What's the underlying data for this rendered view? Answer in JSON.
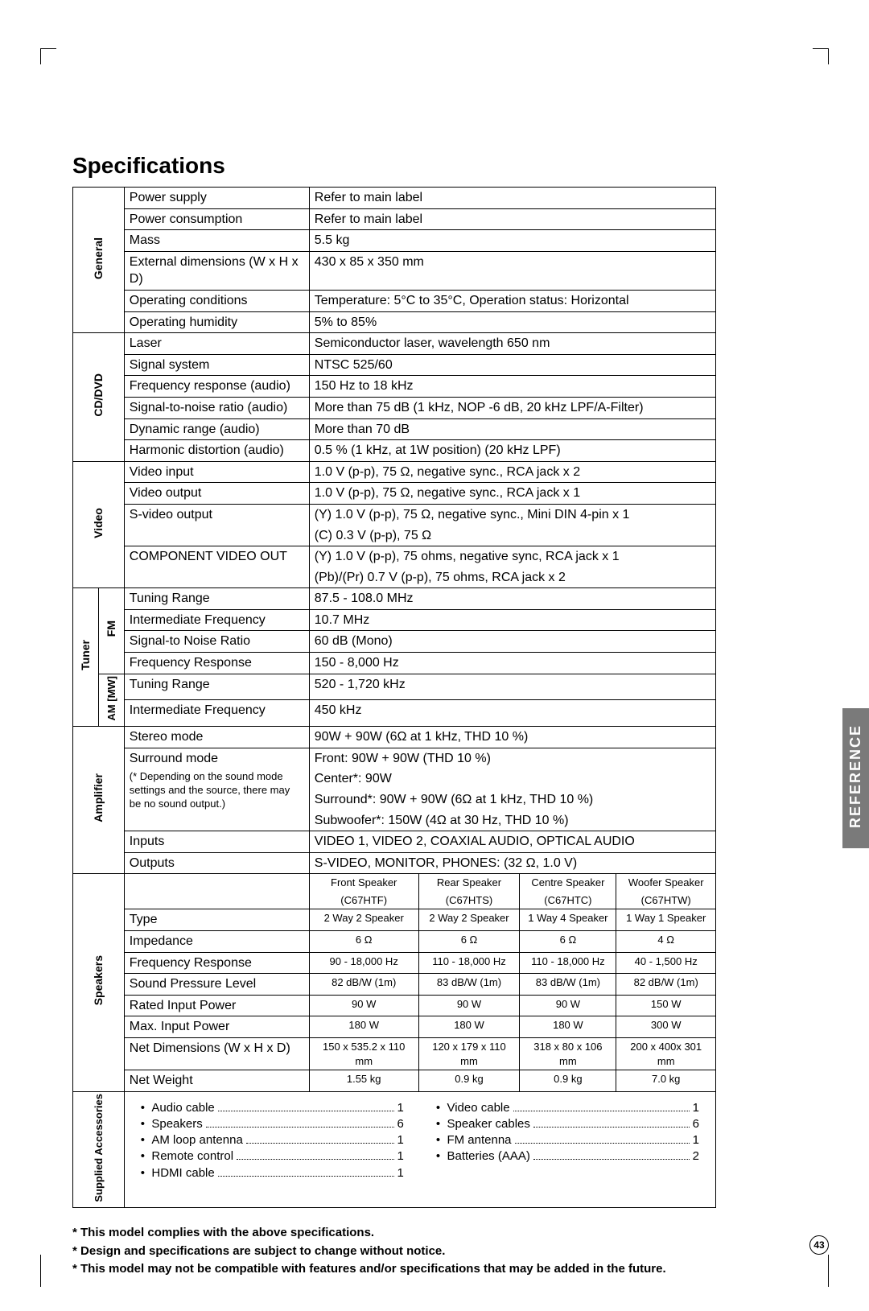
{
  "title": "Specifications",
  "side_tab": "REFERENCE",
  "page_number": "43",
  "sections": {
    "general": {
      "label": "General",
      "rows": [
        {
          "k": "Power supply",
          "v": "Refer to main label"
        },
        {
          "k": "Power consumption",
          "v": "Refer to main label"
        },
        {
          "k": "Mass",
          "v": "5.5 kg"
        },
        {
          "k": "External dimensions (W x H x D)",
          "v": "430 x 85 x 350 mm"
        },
        {
          "k": "Operating conditions",
          "v": "Temperature: 5°C to 35°C, Operation status: Horizontal"
        },
        {
          "k": "Operating humidity",
          "v": "5% to 85%"
        }
      ]
    },
    "cddvd": {
      "label": "CD/DVD",
      "rows": [
        {
          "k": "Laser",
          "v": "Semiconductor laser, wavelength 650 nm"
        },
        {
          "k": "Signal system",
          "v": "NTSC 525/60"
        },
        {
          "k": "Frequency response (audio)",
          "v": "150 Hz to 18 kHz"
        },
        {
          "k": "Signal-to-noise ratio (audio)",
          "v": "More than 75 dB (1 kHz, NOP -6 dB, 20 kHz LPF/A-Filter)"
        },
        {
          "k": "Dynamic range (audio)",
          "v": "More than 70 dB"
        },
        {
          "k": "Harmonic distortion (audio)",
          "v": "0.5 % (1 kHz, at 1W position) (20 kHz LPF)"
        }
      ]
    },
    "video": {
      "label": "Video",
      "rows": [
        {
          "k": "Video input",
          "v": "1.0 V (p-p), 75 Ω, negative sync., RCA jack x 2"
        },
        {
          "k": "Video output",
          "v": "1.0 V (p-p), 75 Ω, negative sync., RCA jack x 1"
        },
        {
          "k": "S-video output",
          "v": "(Y) 1.0 V (p-p), 75 Ω, negative sync., Mini DIN 4-pin x 1"
        },
        {
          "k": "",
          "v": "(C) 0.3 V (p-p), 75 Ω"
        },
        {
          "k": "COMPONENT VIDEO OUT",
          "v": "(Y) 1.0 V (p-p), 75 ohms, negative sync, RCA jack x 1"
        },
        {
          "k": "",
          "v": "(Pb)/(Pr) 0.7 V (p-p), 75 ohms, RCA jack x 2"
        }
      ]
    },
    "tuner": {
      "label": "Tuner",
      "fm": {
        "label": "FM",
        "rows": [
          {
            "k": "Tuning Range",
            "v": "87.5 - 108.0 MHz"
          },
          {
            "k": "Intermediate Frequency",
            "v": "10.7 MHz"
          },
          {
            "k": "Signal-to Noise Ratio",
            "v": "60 dB (Mono)"
          },
          {
            "k": "Frequency Response",
            "v": "150 - 8,000 Hz"
          }
        ]
      },
      "am": {
        "label": "AM [MW]",
        "rows": [
          {
            "k": "Tuning Range",
            "v": "520 - 1,720 kHz"
          },
          {
            "k": "Intermediate Frequency",
            "v": "450 kHz"
          }
        ]
      }
    },
    "amplifier": {
      "label": "Amplifier",
      "rows": [
        {
          "k": "Stereo mode",
          "v": "90W + 90W (6Ω at 1 kHz, THD 10 %)"
        },
        {
          "k": "Surround mode",
          "v": "Front: 90W + 90W (THD 10 %)"
        }
      ],
      "note": "(* Depending on the sound mode settings and the source, there may be no sound output.)",
      "surround_rows": [
        "Center*: 90W",
        "Surround*: 90W + 90W (6Ω at 1 kHz, THD 10 %)",
        "Subwoofer*: 150W (4Ω at 30 Hz, THD 10 %)"
      ],
      "io": [
        {
          "k": "Inputs",
          "v": "VIDEO 1, VIDEO 2, COAXIAL AUDIO, OPTICAL AUDIO"
        },
        {
          "k": "Outputs",
          "v": "S-VIDEO, MONITOR, PHONES: (32 Ω, 1.0 V)"
        }
      ]
    },
    "speakers": {
      "label": "Speakers",
      "headers": [
        {
          "t": "Front Speaker",
          "s": "(C67HTF)"
        },
        {
          "t": "Rear Speaker",
          "s": "(C67HTS)"
        },
        {
          "t": "Centre Speaker",
          "s": "(C67HTC)"
        },
        {
          "t": "Woofer Speaker",
          "s": "(C67HTW)"
        }
      ],
      "rows": [
        {
          "k": "Type",
          "c": [
            "2 Way 2 Speaker",
            "2 Way 2 Speaker",
            "1 Way 4 Speaker",
            "1 Way 1 Speaker"
          ]
        },
        {
          "k": "Impedance",
          "c": [
            "6 Ω",
            "6 Ω",
            "6 Ω",
            "4 Ω"
          ]
        },
        {
          "k": "Frequency Response",
          "c": [
            "90 - 18,000 Hz",
            "110 - 18,000 Hz",
            "110 - 18,000 Hz",
            "40 - 1,500 Hz"
          ]
        },
        {
          "k": "Sound Pressure Level",
          "c": [
            "82 dB/W (1m)",
            "83 dB/W (1m)",
            "83 dB/W (1m)",
            "82 dB/W (1m)"
          ]
        },
        {
          "k": "Rated Input Power",
          "c": [
            "90 W",
            "90 W",
            "90 W",
            "150 W"
          ]
        },
        {
          "k": "Max. Input Power",
          "c": [
            "180 W",
            "180 W",
            "180 W",
            "300 W"
          ]
        },
        {
          "k": "Net Dimensions (W x H x D)",
          "c": [
            "150 x 535.2 x 110  mm",
            "120 x 179 x 110  mm",
            "318 x 80 x 106  mm",
            "200 x 400x 301  mm"
          ]
        },
        {
          "k": "Net Weight",
          "c": [
            "1.55  kg",
            "0.9  kg",
            "0.9  kg",
            "7.0  kg"
          ]
        }
      ]
    },
    "accessories": {
      "label": "Supplied Accessories",
      "left": [
        {
          "n": "Audio cable",
          "q": "1"
        },
        {
          "n": "Speakers",
          "q": "6"
        },
        {
          "n": "AM loop antenna",
          "q": "1"
        },
        {
          "n": "Remote control",
          "q": "1"
        },
        {
          "n": "HDMI cable",
          "q": "1"
        }
      ],
      "right": [
        {
          "n": "Video cable",
          "q": "1"
        },
        {
          "n": "Speaker cables",
          "q": "6"
        },
        {
          "n": "FM antenna",
          "q": "1"
        },
        {
          "n": "Batteries (AAA)",
          "q": "2"
        }
      ]
    }
  },
  "footnotes": [
    "This model complies with the above specifications.",
    "Design and specifications are subject to change without notice.",
    "This model may not be compatible with features and/or specifications that may be added in the future."
  ]
}
